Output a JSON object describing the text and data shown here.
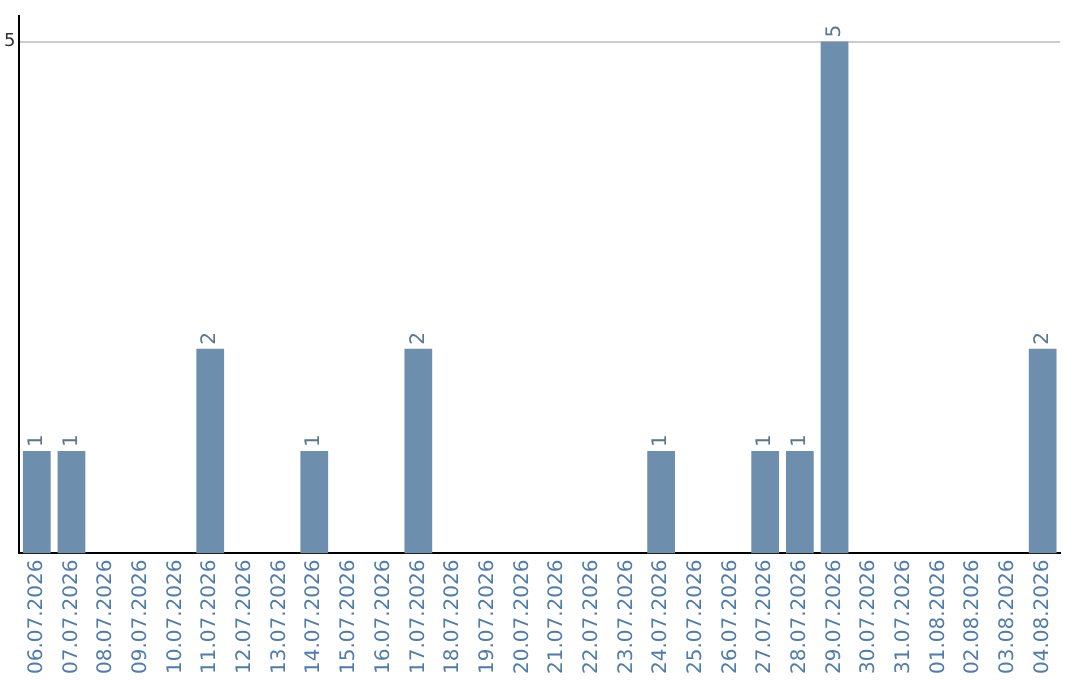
{
  "chart_data": {
    "type": "bar",
    "categories": [
      "06.07.2026",
      "07.07.2026",
      "08.07.2026",
      "09.07.2026",
      "10.07.2026",
      "11.07.2026",
      "12.07.2026",
      "13.07.2026",
      "14.07.2026",
      "15.07.2026",
      "16.07.2026",
      "17.07.2026",
      "18.07.2026",
      "19.07.2026",
      "20.07.2026",
      "21.07.2026",
      "22.07.2026",
      "23.07.2026",
      "24.07.2026",
      "25.07.2026",
      "26.07.2026",
      "27.07.2026",
      "28.07.2026",
      "29.07.2026",
      "30.07.2026",
      "31.07.2026",
      "01.08.2026",
      "02.08.2026",
      "03.08.2026",
      "04.08.2026"
    ],
    "values": [
      1,
      1,
      0,
      0,
      0,
      2,
      0,
      0,
      1,
      0,
      0,
      2,
      0,
      0,
      0,
      0,
      0,
      0,
      1,
      0,
      0,
      1,
      1,
      5,
      0,
      0,
      0,
      0,
      0,
      2
    ],
    "value_labels": [
      "1",
      "1",
      null,
      null,
      null,
      "2",
      null,
      null,
      "1",
      null,
      null,
      "2",
      null,
      null,
      null,
      null,
      null,
      null,
      "1",
      null,
      null,
      "1",
      "1",
      "5",
      null,
      null,
      null,
      null,
      null,
      "2"
    ],
    "color": "#6d8fad",
    "ylim": [
      0,
      5.25
    ],
    "yticks": [
      5
    ],
    "grid": "y",
    "legend": false
  }
}
